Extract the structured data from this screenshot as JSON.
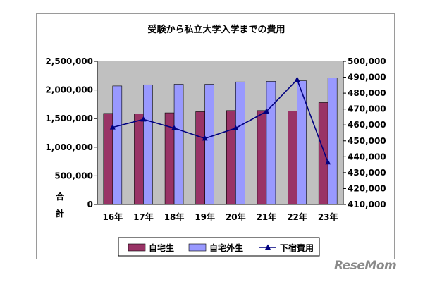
{
  "chart_data": {
    "type": "bar",
    "title": "受験から私立大学入学までの費用",
    "categories": [
      "16年",
      "17年",
      "18年",
      "19年",
      "20年",
      "21年",
      "22年",
      "23年"
    ],
    "series": [
      {
        "name": "自宅生",
        "kind": "bar",
        "axis": "left",
        "color": "#993366",
        "values": [
          1590000,
          1580000,
          1600000,
          1620000,
          1640000,
          1640000,
          1630000,
          1780000
        ]
      },
      {
        "name": "自宅外生",
        "kind": "bar",
        "axis": "left",
        "color": "#9999ff",
        "values": [
          2070000,
          2090000,
          2100000,
          2100000,
          2140000,
          2150000,
          2160000,
          2210000
        ]
      },
      {
        "name": "下宿費用",
        "kind": "line",
        "axis": "right",
        "color": "#000080",
        "values": [
          458500,
          463500,
          458000,
          451500,
          458000,
          468500,
          488500,
          436500
        ]
      }
    ],
    "y_left": {
      "min": 0,
      "max": 2500000,
      "step": 500000,
      "tick_labels": [
        "0",
        "500,000",
        "1,000,000",
        "1,500,000",
        "2,000,000",
        "2,500,000"
      ],
      "label": "合計"
    },
    "y_right": {
      "min": 410000,
      "max": 500000,
      "step": 10000,
      "tick_labels": [
        "410,000",
        "420,000",
        "430,000",
        "440,000",
        "450,000",
        "460,000",
        "470,000",
        "480,000",
        "490,000",
        "500,000"
      ]
    },
    "grid": false,
    "plot_background": "#c0c0c0",
    "legend": {
      "position": "bottom",
      "items": [
        "自宅生",
        "自宅外生",
        "下宿費用"
      ]
    }
  },
  "watermark": "ReseMom"
}
